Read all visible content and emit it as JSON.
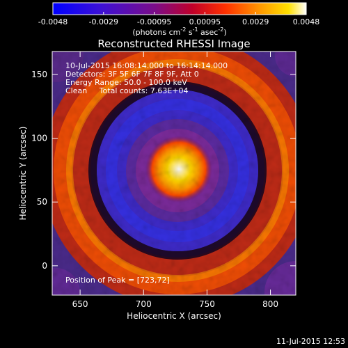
{
  "colorbar": {
    "ticks": [
      "-0.0048",
      "-0.0029",
      "-0.00095",
      "0.00095",
      "0.0029",
      "0.0048"
    ],
    "units_prefix": "(photons cm",
    "units_exp1": "-2",
    "units_mid": " s",
    "units_exp2": "-1",
    "units_mid2": " asec",
    "units_exp3": "-2",
    "units_suffix": ")"
  },
  "plot": {
    "title": "Reconstructed RHESSI Image",
    "info": [
      "10-Jul-2015 16:08:14.000 to 16:14:14.000",
      "Detectors: 3F 5F 6F 7F 8F 9F, Att 0",
      "Energy Range: 50.0 - 100.0 keV",
      "Clean     Total counts: 7.63E+04"
    ],
    "peak_label": "Position of Peak = [723,72]",
    "footer_date": "11-Jul-2015 12:53"
  },
  "colors": {
    "background": "#000000",
    "text": "#ffffff",
    "colormap": [
      "#0000ff",
      "#6a0da0",
      "#d6001a",
      "#ff5a00",
      "#ffd400",
      "#ffffff"
    ]
  },
  "chart_data": {
    "type": "heatmap",
    "title": "Reconstructed RHESSI Image",
    "xlabel": "Heliocentric X (arcsec)",
    "ylabel": "Heliocentric Y (arcsec)",
    "xlim": [
      628,
      820
    ],
    "ylim": [
      -23,
      168
    ],
    "xticks": [
      650,
      700,
      750,
      800
    ],
    "yticks": [
      0,
      50,
      100,
      150
    ],
    "colorbar_range": [
      -0.0048,
      0.0048
    ],
    "peak": [
      723,
      72
    ],
    "description_levels": {
      "core": "white/yellow peak at center",
      "inner_ring": "blue-purple negative ring",
      "outer_ring": "red/orange positive ring"
    }
  }
}
